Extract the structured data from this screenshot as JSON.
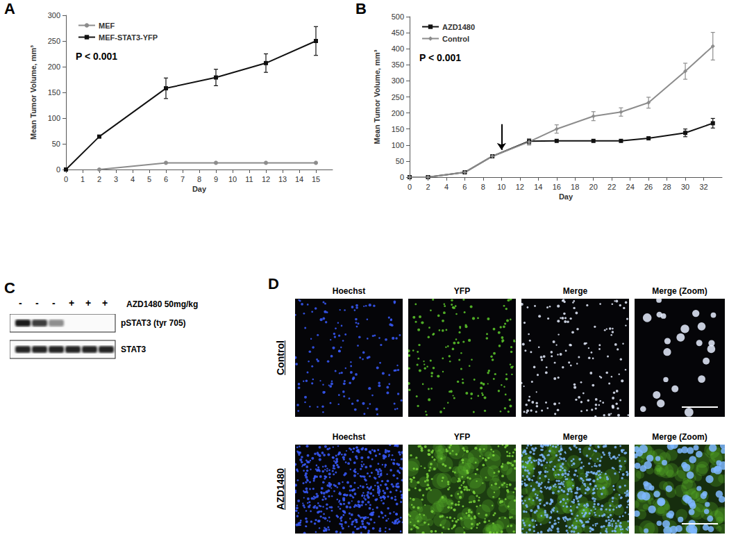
{
  "panel_labels": [
    "A",
    "B",
    "C",
    "D"
  ],
  "chart_data": [
    {
      "type": "line",
      "x_label": "Day",
      "y_label": "Mean Tumor Volume, mm³",
      "annotations": [
        {
          "text": "P < 0.001"
        }
      ],
      "x": [
        0,
        2,
        6,
        9,
        12,
        15
      ],
      "xlim": [
        0,
        16
      ],
      "xticks": [
        0,
        1,
        2,
        3,
        4,
        5,
        6,
        7,
        8,
        9,
        10,
        11,
        12,
        13,
        14,
        15
      ],
      "ylim": [
        0,
        300
      ],
      "yticks": [
        0,
        50,
        100,
        150,
        200,
        250,
        300
      ],
      "grid": false,
      "legend": "upper left",
      "series": [
        {
          "name": "MEF",
          "color": "#8c8c8c",
          "marker": "circle",
          "values": [
            null,
            0,
            13,
            13,
            13,
            13
          ],
          "errors": [
            null,
            null,
            null,
            null,
            null,
            null
          ]
        },
        {
          "name": "MEF-STAT3-YFP",
          "color": "#111111",
          "marker": "square",
          "values": [
            0,
            64,
            158,
            179,
            207,
            250
          ],
          "errors": [
            null,
            null,
            20,
            16,
            18,
            28
          ]
        }
      ]
    },
    {
      "type": "line",
      "x_label": "Day",
      "y_label": "Mean Tumor Volume, mm³",
      "annotations": [
        {
          "text": "P < 0.001"
        }
      ],
      "arrows": [
        {
          "x": 10,
          "y_from": 165,
          "y_to": 85
        }
      ],
      "x": [
        0,
        2,
        6,
        9,
        13,
        16,
        20,
        23,
        26,
        30,
        33
      ],
      "xlim": [
        0,
        34
      ],
      "xticks": [
        0,
        2,
        4,
        6,
        8,
        10,
        12,
        14,
        16,
        18,
        20,
        22,
        24,
        26,
        28,
        30,
        32
      ],
      "ylim": [
        0,
        500
      ],
      "yticks": [
        0,
        50,
        100,
        150,
        200,
        250,
        300,
        350,
        400,
        450,
        500
      ],
      "grid": false,
      "legend": "upper left",
      "series": [
        {
          "name": "AZD1480",
          "color": "#111111",
          "marker": "square",
          "values": [
            0,
            0,
            15,
            65,
            112,
            113,
            113,
            113,
            121,
            138,
            168
          ],
          "errors": [
            null,
            null,
            null,
            null,
            8,
            null,
            null,
            null,
            null,
            12,
            15
          ]
        },
        {
          "name": "Control",
          "color": "#8c8c8c",
          "marker": "diamond",
          "values": [
            0,
            0,
            15,
            65,
            110,
            150,
            190,
            203,
            232,
            330,
            408
          ],
          "errors": [
            null,
            null,
            null,
            null,
            10,
            13,
            14,
            13,
            17,
            25,
            43
          ]
        }
      ]
    }
  ],
  "blot": {
    "treatment_label": "AZD1480 50mg/kg",
    "lanes": [
      "-",
      "-",
      "-",
      "+",
      "+",
      "+"
    ],
    "rows": [
      {
        "label": "pSTAT3 (tyr 705)",
        "bands": [
          true,
          true,
          true,
          false,
          false,
          false
        ]
      },
      {
        "label": "STAT3",
        "bands": [
          true,
          true,
          true,
          true,
          true,
          true
        ]
      }
    ]
  },
  "micrographs": {
    "columns": [
      "Hoechst",
      "YFP",
      "Merge",
      "Merge (Zoom)"
    ],
    "rows": [
      "Control",
      "AZD1480"
    ]
  }
}
